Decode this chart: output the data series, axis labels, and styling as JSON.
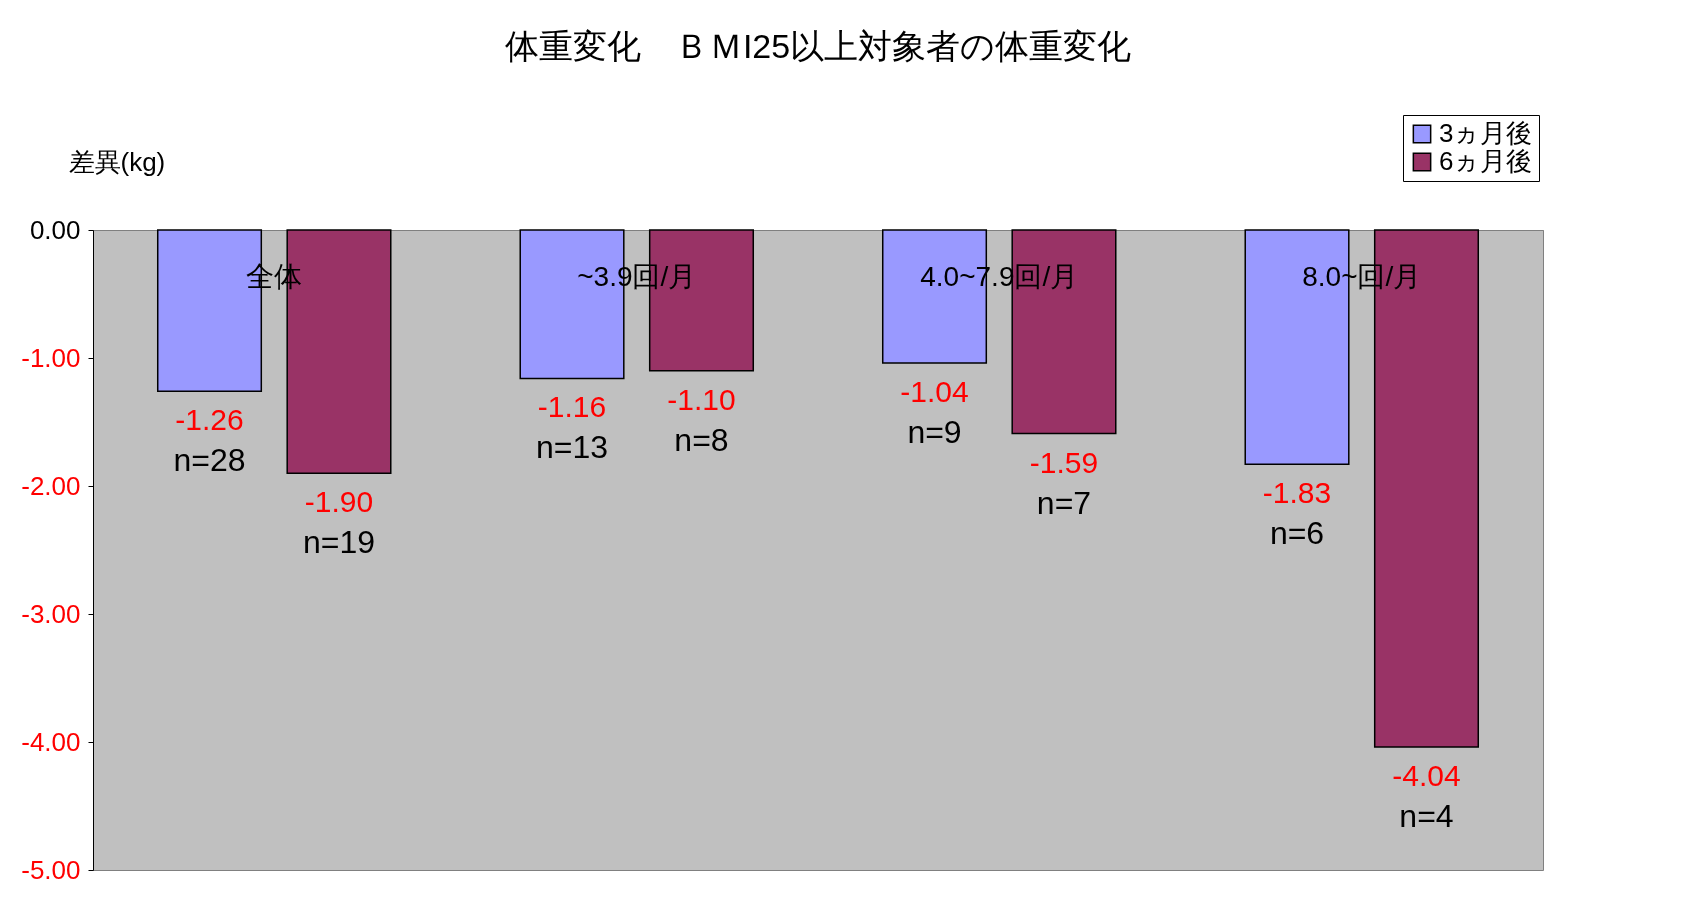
{
  "chart_data": {
    "type": "bar",
    "title": "体重変化　ＢＭI25以上対象者の体重変化",
    "ylabel": "差異(kg)",
    "categories": [
      "全体",
      "~3.9回/月",
      "4.0~7.9回/月",
      "8.0~回/月"
    ],
    "series": [
      {
        "name": "3ヵ月後",
        "color": "#9999ff",
        "values": [
          -1.26,
          -1.16,
          -1.04,
          -1.83
        ],
        "value_labels": [
          "-1.26",
          "-1.16",
          "-1.04",
          "-1.83"
        ]
      },
      {
        "name": "6ヵ月後",
        "color": "#993366",
        "values": [
          -1.9,
          -1.1,
          -1.59,
          -4.04
        ],
        "value_labels": [
          "-1.90",
          "-1.10",
          "-1.59",
          "-4.04"
        ]
      }
    ],
    "ylim": [
      -5,
      0
    ],
    "yticks": [
      {
        "value": 0,
        "label": "0.00"
      },
      {
        "value": -1,
        "label": "-1.00"
      },
      {
        "value": -2,
        "label": "-2.00"
      },
      {
        "value": -3,
        "label": "-3.00"
      },
      {
        "value": -4,
        "label": "-4.00"
      },
      {
        "value": -5,
        "label": "-5.00"
      }
    ],
    "legend": "top right",
    "grid": false,
    "annotations": [
      "n=28",
      "n=19",
      "n=13",
      "n=8",
      "n=9",
      "n=7",
      "n=6",
      "n=4"
    ]
  }
}
